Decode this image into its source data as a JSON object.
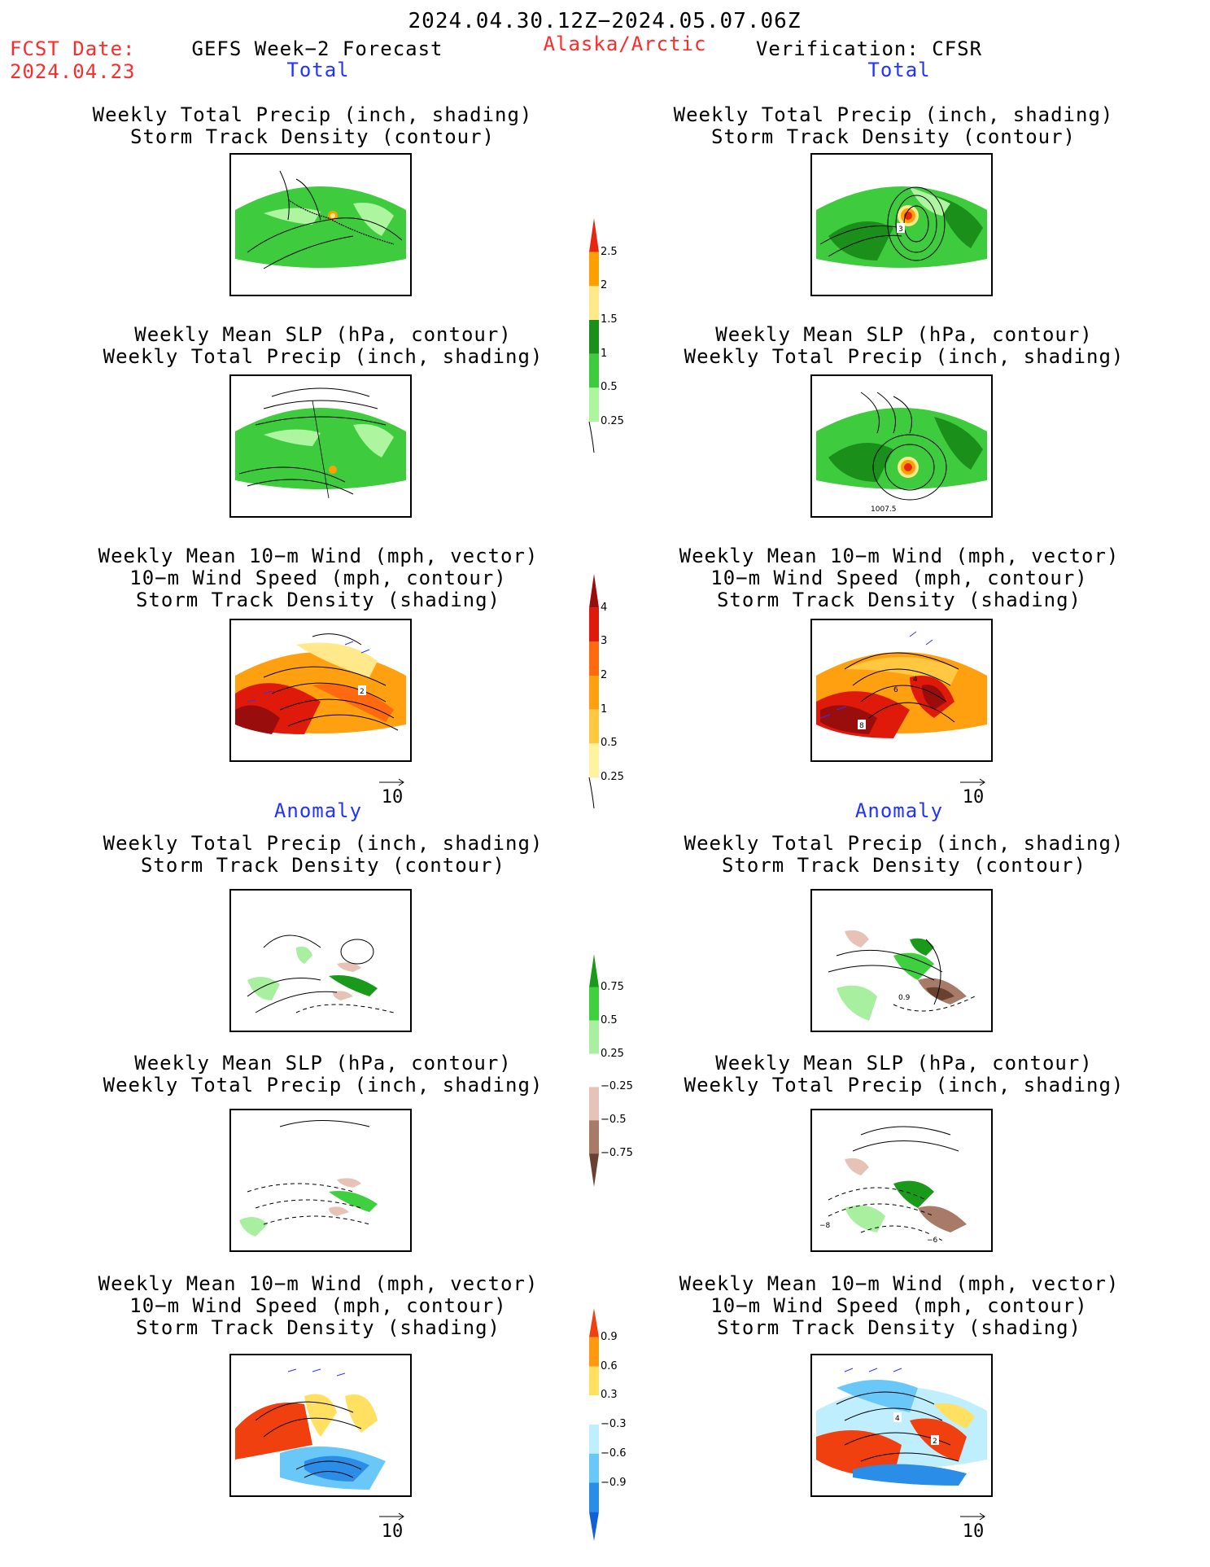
{
  "header": {
    "date_range": "2024.04.30.12Z−2024.05.07.06Z",
    "fcst_label": "FCST Date:",
    "fcst_date": "2024.04.23",
    "forecast_title": "GEFS Week−2 Forecast",
    "region": "Alaska/Arctic",
    "verification": "Verification: CFSR"
  },
  "sections": {
    "total": "Total",
    "anomaly": "Anomaly"
  },
  "panel_titles": {
    "precip_track": [
      "Weekly Total Precip (inch, shading)",
      "Storm Track Density (contour)"
    ],
    "slp_precip": [
      "Weekly Mean SLP (hPa, contour)",
      "Weekly Total Precip (inch, shading)"
    ],
    "wind_track": [
      "Weekly Mean 10−m Wind (mph, vector)",
      "10−m Wind Speed (mph, contour)",
      "Storm Track Density (shading)"
    ]
  },
  "map_labels": {
    "obs_track_total": "3",
    "obs_slp_total": "1007.5",
    "fcst_wind_total": "2",
    "obs_wind_total_a": "8",
    "obs_wind_total_b": "4",
    "obs_wind_total_c": "6",
    "obs_track_anom": "0.9",
    "obs_slp_anom_a": "−8",
    "obs_slp_anom_b": "−6",
    "obs_wind_anom_a": "4",
    "obs_wind_anom_b": "2"
  },
  "vector_reference": "10",
  "colorbars": {
    "precip_total": {
      "ticks": [
        "2.5",
        "2",
        "1.5",
        "1",
        "0.5",
        "0.25"
      ],
      "colors": [
        "#e8250e",
        "#ffa000",
        "#ffe98a",
        "#1a8f1a",
        "#3ecc3e",
        "#aef5a0"
      ]
    },
    "track_total": {
      "ticks": [
        "4",
        "3",
        "2",
        "1",
        "0.5",
        "0.25"
      ],
      "colors": [
        "#9a0d0d",
        "#e01a0a",
        "#ff6a10",
        "#ffa010",
        "#ffc840",
        "#fff3a0"
      ]
    },
    "precip_anom": {
      "ticks": [
        "0.75",
        "0.5",
        "0.25",
        "−0.25",
        "−0.5",
        "−0.75"
      ],
      "colors": [
        "#1a9a1a",
        "#3ed03e",
        "#a8f0a0",
        "#ffffff",
        "#e6c3b6",
        "#a87a68",
        "#6a4030"
      ]
    },
    "wind_anom": {
      "ticks": [
        "0.9",
        "0.6",
        "0.3",
        "−0.3",
        "−0.6",
        "−0.9"
      ],
      "colors": [
        "#f04010",
        "#ff9a10",
        "#ffe060",
        "#ffffff",
        "#bfeeff",
        "#6ac8f8",
        "#2a8ee8",
        "#1060d8"
      ]
    }
  }
}
